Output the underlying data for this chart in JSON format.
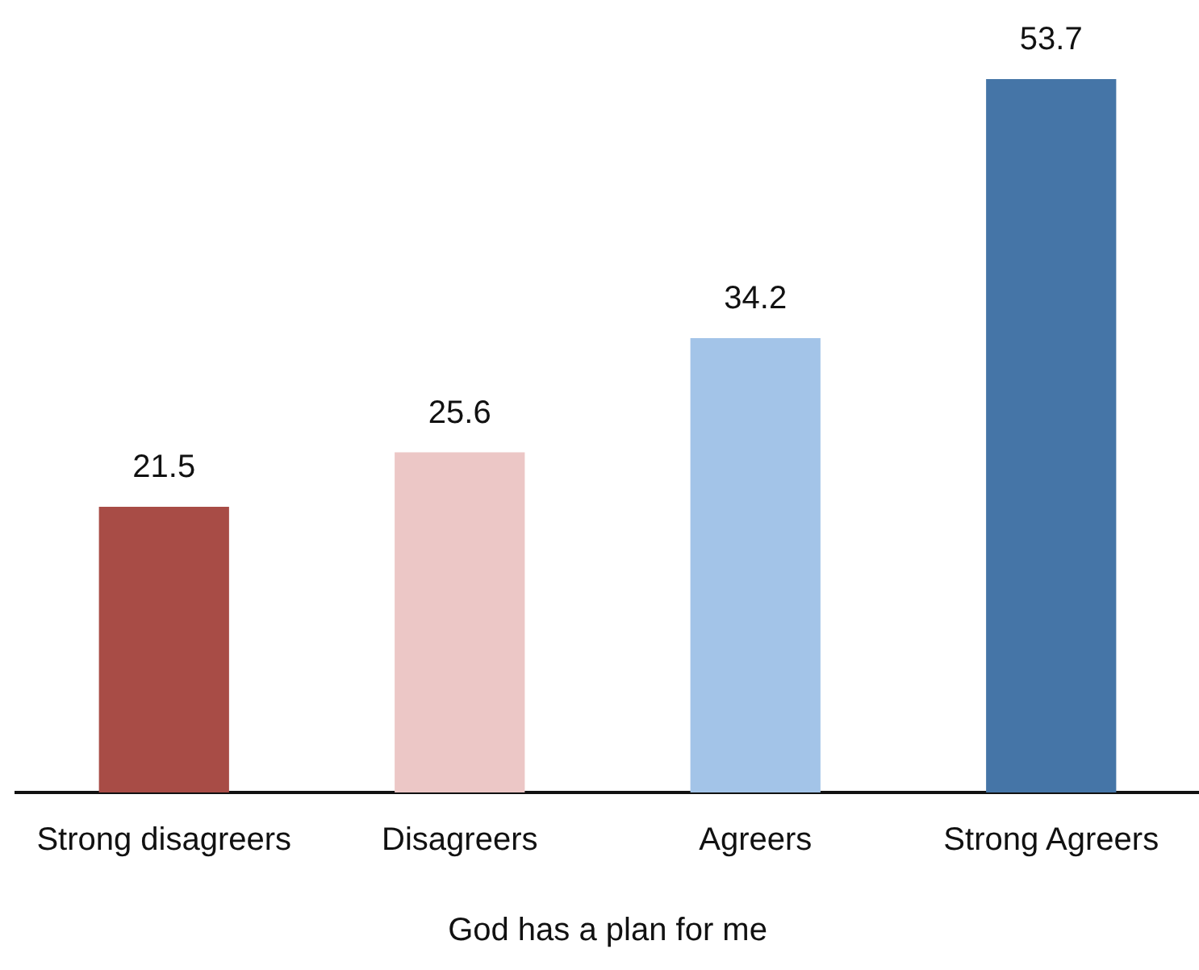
{
  "chart_data": {
    "type": "bar",
    "xlabel": "God has a plan for me",
    "categories": [
      "Strong disagreers",
      "Disagreers",
      "Agreers",
      "Strong Agreers"
    ],
    "values": [
      21.5,
      25.6,
      34.2,
      53.7
    ],
    "colors": [
      "#a84c46",
      "#ecc7c6",
      "#a3c4e8",
      "#4575a7"
    ],
    "data_labels": true,
    "grid": false,
    "legend": false
  }
}
